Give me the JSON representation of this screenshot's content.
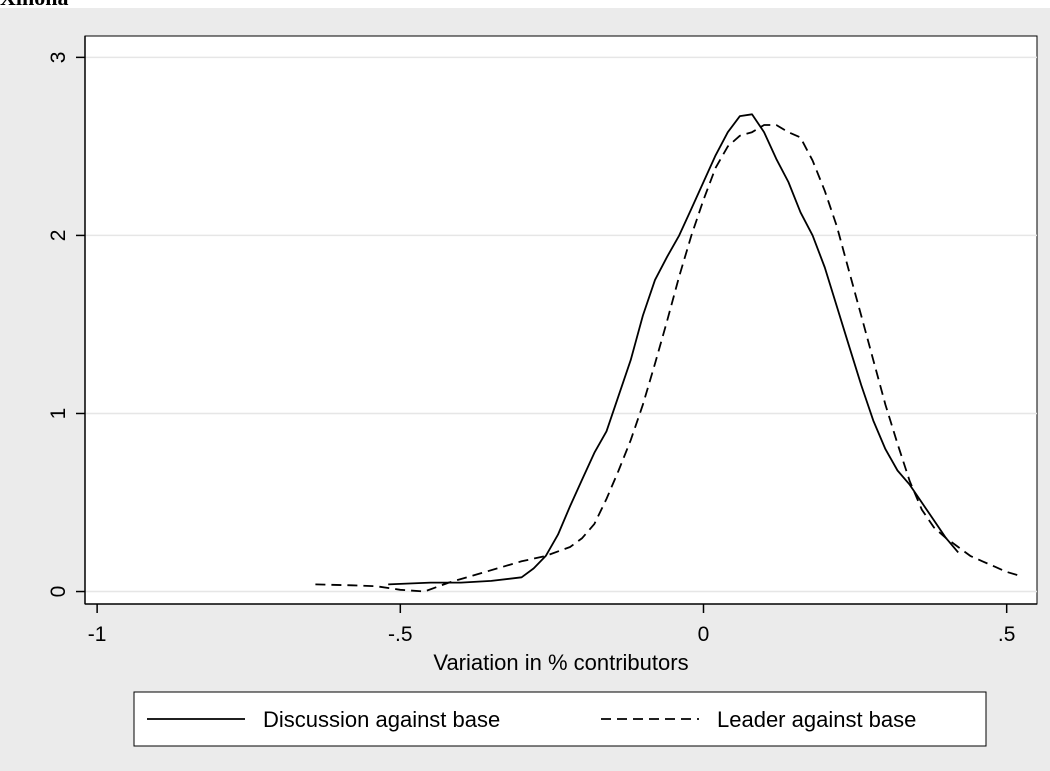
{
  "header_fragment": "Xinona",
  "chart_data": {
    "type": "line",
    "title": "",
    "xlabel": "Variation in % contributors",
    "ylabel": "",
    "xlim": [
      -1.02,
      0.55
    ],
    "ylim": [
      -0.07,
      3.12
    ],
    "xticks": [
      -1,
      -0.5,
      0,
      0.5
    ],
    "xtick_labels": [
      "-1",
      "-.5",
      "0",
      ".5"
    ],
    "yticks": [
      0,
      1,
      2,
      3
    ],
    "ytick_labels": [
      "0",
      "1",
      "2",
      "3"
    ],
    "grid": "horizontal",
    "legend_position": "bottom",
    "series": [
      {
        "name": "Discussion against base",
        "style": "solid",
        "x": [
          -0.52,
          -0.45,
          -0.4,
          -0.35,
          -0.3,
          -0.28,
          -0.26,
          -0.24,
          -0.22,
          -0.2,
          -0.18,
          -0.16,
          -0.14,
          -0.12,
          -0.1,
          -0.08,
          -0.06,
          -0.04,
          -0.02,
          0,
          0.02,
          0.04,
          0.06,
          0.08,
          0.1,
          0.12,
          0.14,
          0.16,
          0.18,
          0.2,
          0.22,
          0.24,
          0.26,
          0.28,
          0.3,
          0.32,
          0.34,
          0.36,
          0.38,
          0.4,
          0.42
        ],
        "y": [
          0.04,
          0.05,
          0.05,
          0.06,
          0.08,
          0.13,
          0.2,
          0.32,
          0.48,
          0.63,
          0.78,
          0.9,
          1.1,
          1.3,
          1.55,
          1.75,
          1.88,
          2.0,
          2.15,
          2.3,
          2.45,
          2.58,
          2.67,
          2.68,
          2.58,
          2.43,
          2.3,
          2.13,
          2.0,
          1.82,
          1.6,
          1.38,
          1.16,
          0.96,
          0.8,
          0.68,
          0.6,
          0.5,
          0.4,
          0.3,
          0.22
        ]
      },
      {
        "name": "Leader against base",
        "style": "dashed",
        "x": [
          -0.64,
          -0.58,
          -0.54,
          -0.5,
          -0.46,
          -0.42,
          -0.38,
          -0.34,
          -0.3,
          -0.26,
          -0.22,
          -0.2,
          -0.18,
          -0.16,
          -0.14,
          -0.12,
          -0.1,
          -0.08,
          -0.06,
          -0.04,
          -0.02,
          0,
          0.02,
          0.04,
          0.06,
          0.08,
          0.1,
          0.12,
          0.14,
          0.16,
          0.18,
          0.2,
          0.22,
          0.24,
          0.26,
          0.28,
          0.3,
          0.32,
          0.34,
          0.36,
          0.38,
          0.4,
          0.42,
          0.44,
          0.46,
          0.48,
          0.5,
          0.52
        ],
        "y": [
          0.04,
          0.035,
          0.03,
          0.01,
          0.0,
          0.05,
          0.09,
          0.13,
          0.17,
          0.2,
          0.25,
          0.3,
          0.38,
          0.52,
          0.68,
          0.85,
          1.05,
          1.28,
          1.52,
          1.77,
          2.0,
          2.2,
          2.38,
          2.5,
          2.56,
          2.58,
          2.62,
          2.62,
          2.58,
          2.55,
          2.42,
          2.25,
          2.05,
          1.8,
          1.55,
          1.3,
          1.05,
          0.83,
          0.62,
          0.46,
          0.36,
          0.3,
          0.25,
          0.2,
          0.17,
          0.14,
          0.11,
          0.09
        ]
      }
    ]
  }
}
